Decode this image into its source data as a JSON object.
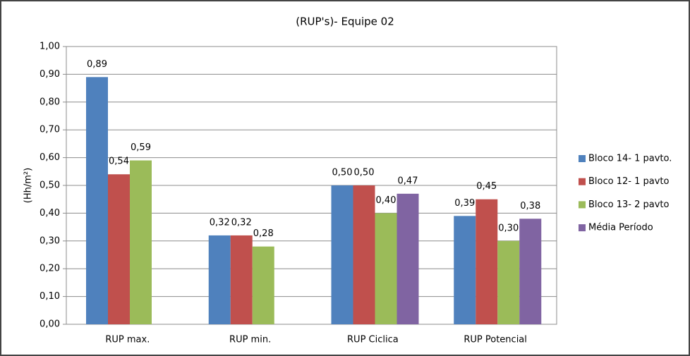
{
  "chart_data": {
    "type": "bar",
    "title": "(RUP's)- Equipe 02",
    "y_label": "(Hh/m²)",
    "categories": [
      "RUP max.",
      "RUP min.",
      "RUP Ciclica",
      "RUP Potencial"
    ],
    "series": [
      {
        "name": "Bloco 14- 1 pavto.",
        "color": "#4f81bd",
        "values": [
          0.89,
          0.32,
          0.5,
          0.39
        ],
        "value_labels": [
          "0,89",
          "0,32",
          "0,50",
          "0,39"
        ]
      },
      {
        "name": "Bloco 12- 1 pavto",
        "color": "#c0504d",
        "values": [
          0.54,
          0.32,
          0.5,
          0.45
        ],
        "value_labels": [
          "0,54",
          "0,32",
          "0,50",
          "0,45"
        ]
      },
      {
        "name": "Bloco 13- 2 pavto",
        "color": "#9bbb59",
        "values": [
          0.59,
          0.28,
          0.4,
          0.3
        ],
        "value_labels": [
          "0,59",
          "0,28",
          "0,40",
          "0,30"
        ]
      },
      {
        "name": "Média Período",
        "color": "#8064a2",
        "values": [
          null,
          null,
          0.47,
          0.38
        ],
        "value_labels": [
          null,
          null,
          "0,47",
          "0,38"
        ]
      }
    ],
    "ylim": [
      0,
      1
    ],
    "yticks": [
      {
        "value": 0,
        "label": "0,00"
      },
      {
        "value": 0.1,
        "label": "0,10"
      },
      {
        "value": 0.2,
        "label": "0,20"
      },
      {
        "value": 0.3,
        "label": "0,30"
      },
      {
        "value": 0.4,
        "label": "0,40"
      },
      {
        "value": 0.5,
        "label": "0,50"
      },
      {
        "value": 0.6,
        "label": "0,60"
      },
      {
        "value": 0.7,
        "label": "0,70"
      },
      {
        "value": 0.8,
        "label": "0,80"
      },
      {
        "value": 0.9,
        "label": "0,90"
      },
      {
        "value": 1,
        "label": "1,00"
      }
    ],
    "grid": true,
    "legend": "right"
  }
}
